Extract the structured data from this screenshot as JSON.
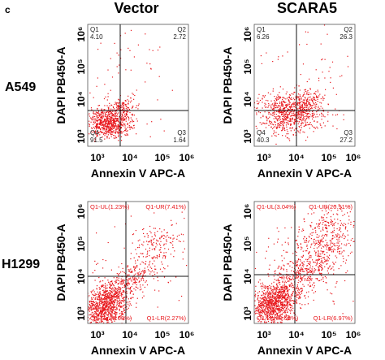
{
  "panel_label": "c",
  "columns": [
    "Vector",
    "SCARA5"
  ],
  "rows": [
    "A549",
    "H1299"
  ],
  "axes": {
    "x_label": "Annexin V APC-A",
    "y_label": "DAPI  PB450-A",
    "ticks": [
      "10³",
      "10⁴",
      "10⁵",
      "10⁶"
    ]
  },
  "plots": [
    {
      "quadrants": [
        {
          "label": "Q1",
          "value": "4.10"
        },
        {
          "label": "Q2",
          "value": "2.72"
        },
        {
          "label": "Q4",
          "value": "91.5"
        },
        {
          "label": "Q3",
          "value": "1.64"
        }
      ]
    },
    {
      "quadrants": [
        {
          "label": "Q1",
          "value": "6.26"
        },
        {
          "label": "Q2",
          "value": "26.3"
        },
        {
          "label": "Q4",
          "value": "40.3"
        },
        {
          "label": "Q3",
          "value": "27.2"
        }
      ]
    },
    {
      "quadrants": [
        {
          "label": "Q1-UL(1.23%)"
        },
        {
          "label": "Q1-UR(7.41%)"
        },
        {
          "label": "Q1-LL(89.09%)"
        },
        {
          "label": "Q1-LR(2.27%)"
        }
      ]
    },
    {
      "quadrants": [
        {
          "label": "Q1-UL(3.04%)"
        },
        {
          "label": "Q1-UR(20.91%)"
        },
        {
          "label": "Q1-LL(69.08%)"
        },
        {
          "label": "Q1-LR(6.97%)"
        }
      ]
    }
  ]
}
